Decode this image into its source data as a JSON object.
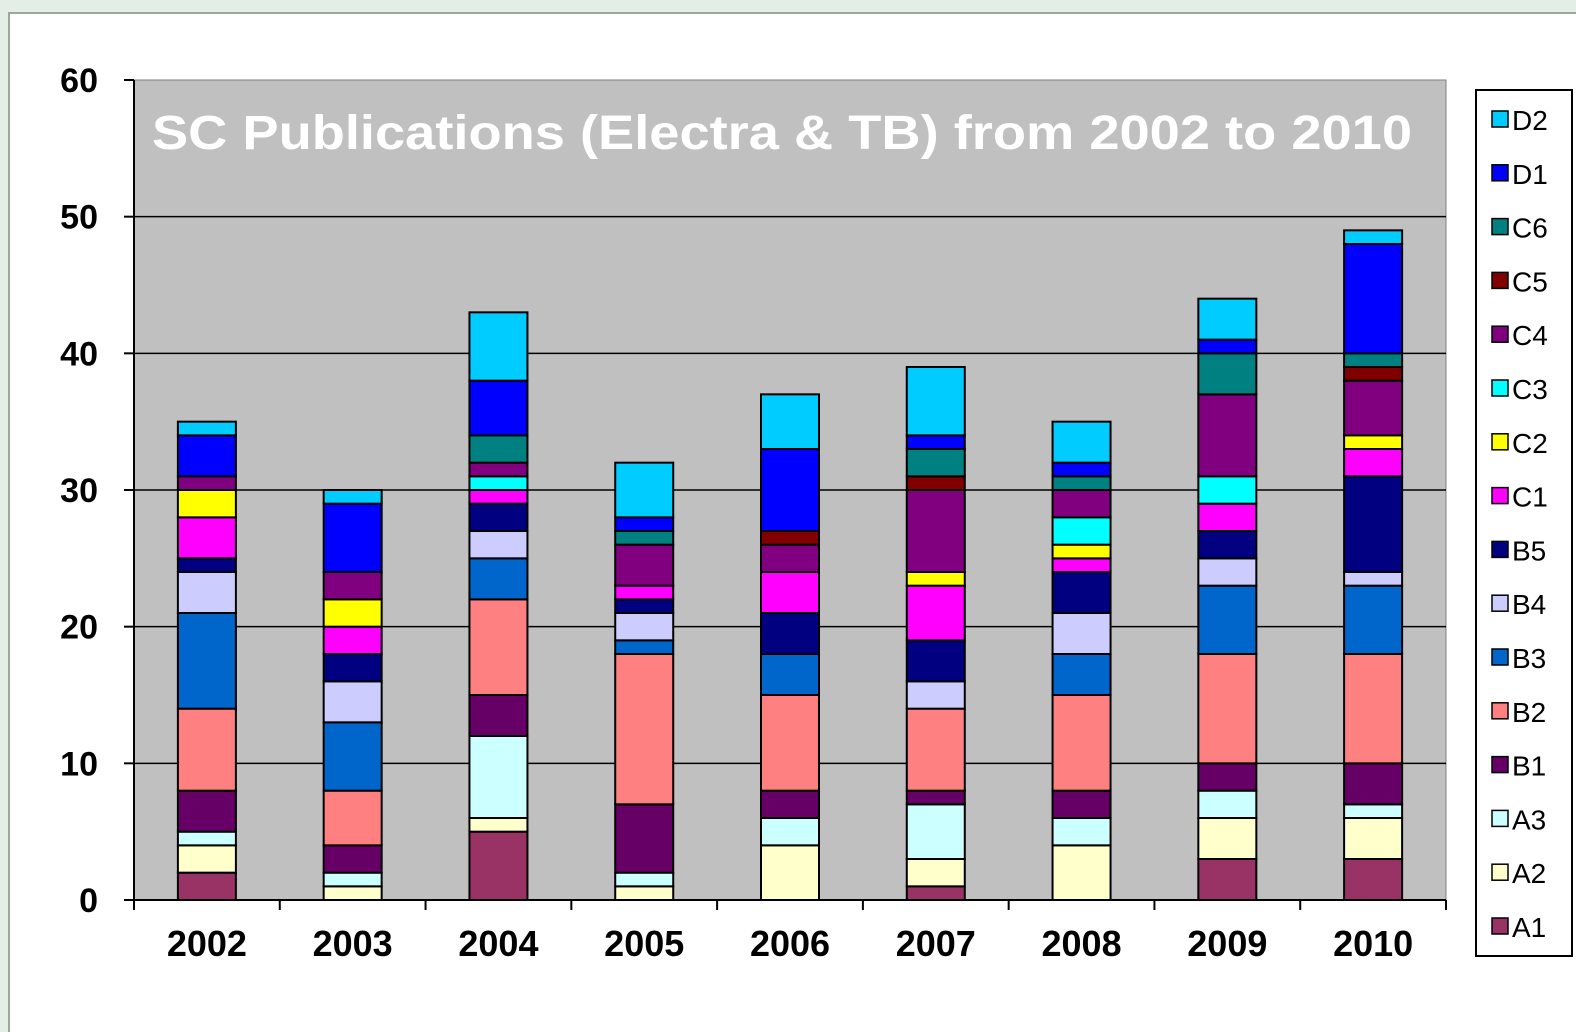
{
  "chart_data": {
    "type": "bar",
    "stacked": true,
    "title": "SC Publications (Electra & TB) from 2002 to 2010",
    "xlabel": "",
    "ylabel": "",
    "ylim": [
      0,
      60
    ],
    "yticks": [
      0,
      10,
      20,
      30,
      40,
      50,
      60
    ],
    "grid": true,
    "legend_position": "right",
    "categories": [
      "2002",
      "2003",
      "2004",
      "2005",
      "2006",
      "2007",
      "2008",
      "2009",
      "2010"
    ],
    "series": [
      {
        "name": "A1",
        "color": "#993366",
        "values": [
          2,
          0,
          5,
          0,
          0,
          1,
          0,
          3,
          3
        ]
      },
      {
        "name": "A2",
        "color": "#ffffcc",
        "values": [
          2,
          1,
          1,
          1,
          4,
          2,
          4,
          3,
          3
        ]
      },
      {
        "name": "A3",
        "color": "#ccffff",
        "values": [
          1,
          1,
          6,
          1,
          2,
          4,
          2,
          2,
          1
        ]
      },
      {
        "name": "B1",
        "color": "#660066",
        "values": [
          3,
          2,
          3,
          5,
          2,
          1,
          2,
          2,
          3
        ]
      },
      {
        "name": "B2",
        "color": "#ff8080",
        "values": [
          6,
          4,
          7,
          11,
          7,
          6,
          7,
          8,
          8
        ]
      },
      {
        "name": "B3",
        "color": "#0066cc",
        "values": [
          7,
          5,
          3,
          1,
          3,
          0,
          3,
          5,
          5
        ]
      },
      {
        "name": "B4",
        "color": "#ccccff",
        "values": [
          3,
          3,
          2,
          2,
          0,
          2,
          3,
          2,
          1
        ]
      },
      {
        "name": "B5",
        "color": "#000080",
        "values": [
          1,
          2,
          2,
          1,
          3,
          3,
          3,
          2,
          7
        ]
      },
      {
        "name": "C1",
        "color": "#ff00ff",
        "values": [
          3,
          2,
          1,
          1,
          3,
          4,
          1,
          2,
          2
        ]
      },
      {
        "name": "C2",
        "color": "#ffff00",
        "values": [
          2,
          2,
          0,
          0,
          0,
          1,
          1,
          0,
          1
        ]
      },
      {
        "name": "C3",
        "color": "#00ffff",
        "values": [
          0,
          0,
          1,
          0,
          0,
          0,
          2,
          2,
          0
        ]
      },
      {
        "name": "C4",
        "color": "#800080",
        "values": [
          1,
          2,
          1,
          3,
          2,
          6,
          2,
          6,
          4
        ]
      },
      {
        "name": "C5",
        "color": "#800000",
        "values": [
          0,
          0,
          0,
          0,
          1,
          1,
          0,
          0,
          1
        ]
      },
      {
        "name": "C6",
        "color": "#008080",
        "values": [
          0,
          0,
          2,
          1,
          0,
          2,
          1,
          3,
          1
        ]
      },
      {
        "name": "D1",
        "color": "#0000ff",
        "values": [
          3,
          5,
          4,
          1,
          6,
          1,
          1,
          1,
          8
        ]
      },
      {
        "name": "D2",
        "color": "#00ccff",
        "values": [
          1,
          1,
          5,
          4,
          4,
          5,
          3,
          3,
          1
        ]
      }
    ],
    "colors": {
      "plot_background": "#c0c0c0",
      "title_text": "#ffffff",
      "axis_text": "#000000",
      "gridline": "#000000"
    }
  }
}
